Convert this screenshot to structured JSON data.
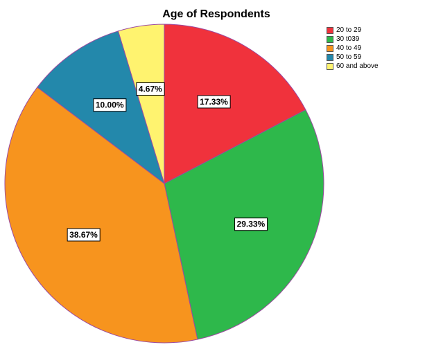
{
  "chart_data": {
    "type": "pie",
    "title": "Age of Respondents",
    "start_angle_deg": 0,
    "direction": "clockwise",
    "legend_position": "top-right",
    "slices": [
      {
        "label": "20 to 29",
        "value": 17.33,
        "value_label": "17.33%",
        "color": "#f0323c"
      },
      {
        "label": "30 t039",
        "value": 29.33,
        "value_label": "29.33%",
        "color": "#2eb84b"
      },
      {
        "label": "40 to 49",
        "value": 38.67,
        "value_label": "38.67%",
        "color": "#f7941e"
      },
      {
        "label": "50 to 59",
        "value": 10.0,
        "value_label": "10.00%",
        "color": "#2388ab"
      },
      {
        "label": "60 and above",
        "value": 4.67,
        "value_label": "4.67%",
        "color": "#fff36f"
      }
    ],
    "slice_border_color": "#9b4aa0"
  }
}
